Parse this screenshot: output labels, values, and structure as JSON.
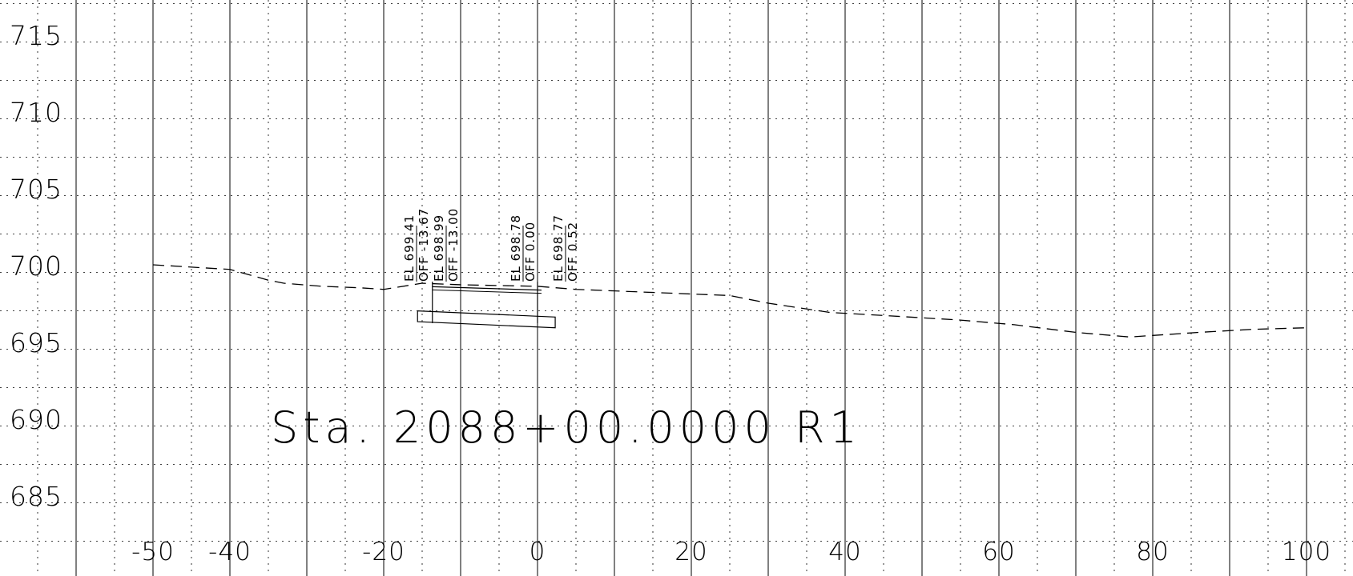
{
  "colors": {
    "background": "#ffffff",
    "ink": "#000000"
  },
  "station_label": "Sta. 2088+00.0000 R1",
  "y_axis": {
    "range": [
      682,
      720
    ],
    "major_step": 5,
    "minor_step": 2.5,
    "labels": [
      "715",
      "710",
      "705",
      "700",
      "695",
      "690",
      "685"
    ],
    "values": [
      715,
      710,
      705,
      700,
      695,
      690,
      685
    ]
  },
  "x_axis": {
    "major_step": 10,
    "minor_step": 5,
    "labels": [
      "-50",
      "-40",
      "-20",
      "0",
      "20",
      "40",
      "60",
      "80",
      "100"
    ],
    "values": [
      -50,
      -40,
      -20,
      0,
      20,
      40,
      60,
      80,
      100
    ]
  },
  "ground_profile": {
    "style": "dashed",
    "points": [
      [
        -50,
        700.0
      ],
      [
        -40,
        699.7
      ],
      [
        -35,
        699.0
      ],
      [
        -33,
        698.8
      ],
      [
        -28,
        698.6
      ],
      [
        -23,
        698.5
      ],
      [
        -20,
        698.4
      ],
      [
        -15,
        698.8
      ],
      [
        -10,
        698.7
      ],
      [
        0,
        698.6
      ],
      [
        5,
        698.4
      ],
      [
        10,
        698.3
      ],
      [
        15,
        698.2
      ],
      [
        20,
        698.1
      ],
      [
        25,
        698.0
      ],
      [
        30,
        697.5
      ],
      [
        38,
        696.9
      ],
      [
        45,
        696.7
      ],
      [
        55,
        696.4
      ],
      [
        62,
        696.1
      ],
      [
        70,
        695.6
      ],
      [
        77,
        695.3
      ],
      [
        80,
        695.4
      ],
      [
        86,
        695.6
      ],
      [
        93,
        695.8
      ],
      [
        100,
        695.9
      ]
    ]
  },
  "pavement_box": {
    "top_left": [
      -15.6,
      697.0
    ],
    "top_right": [
      2.3,
      696.6
    ],
    "thickness": 0.7,
    "ticks_at": [
      -13.67,
      0.0
    ]
  },
  "annotations": [
    {
      "el_label": "EL 699.41",
      "off_label": "OFF -13.67",
      "offset": -13.67,
      "elevation": 699.41
    },
    {
      "el_label": "EL 698.99",
      "off_label": "OFF -13.00",
      "offset": -13.0,
      "elevation": 698.99
    },
    {
      "el_label": "EL 698.78",
      "off_label": "OFF 0.00",
      "offset": 0.0,
      "elevation": 698.78
    },
    {
      "el_label": "EL 698.77",
      "off_label": "OFF 0.52",
      "offset": 0.52,
      "elevation": 698.77
    }
  ]
}
